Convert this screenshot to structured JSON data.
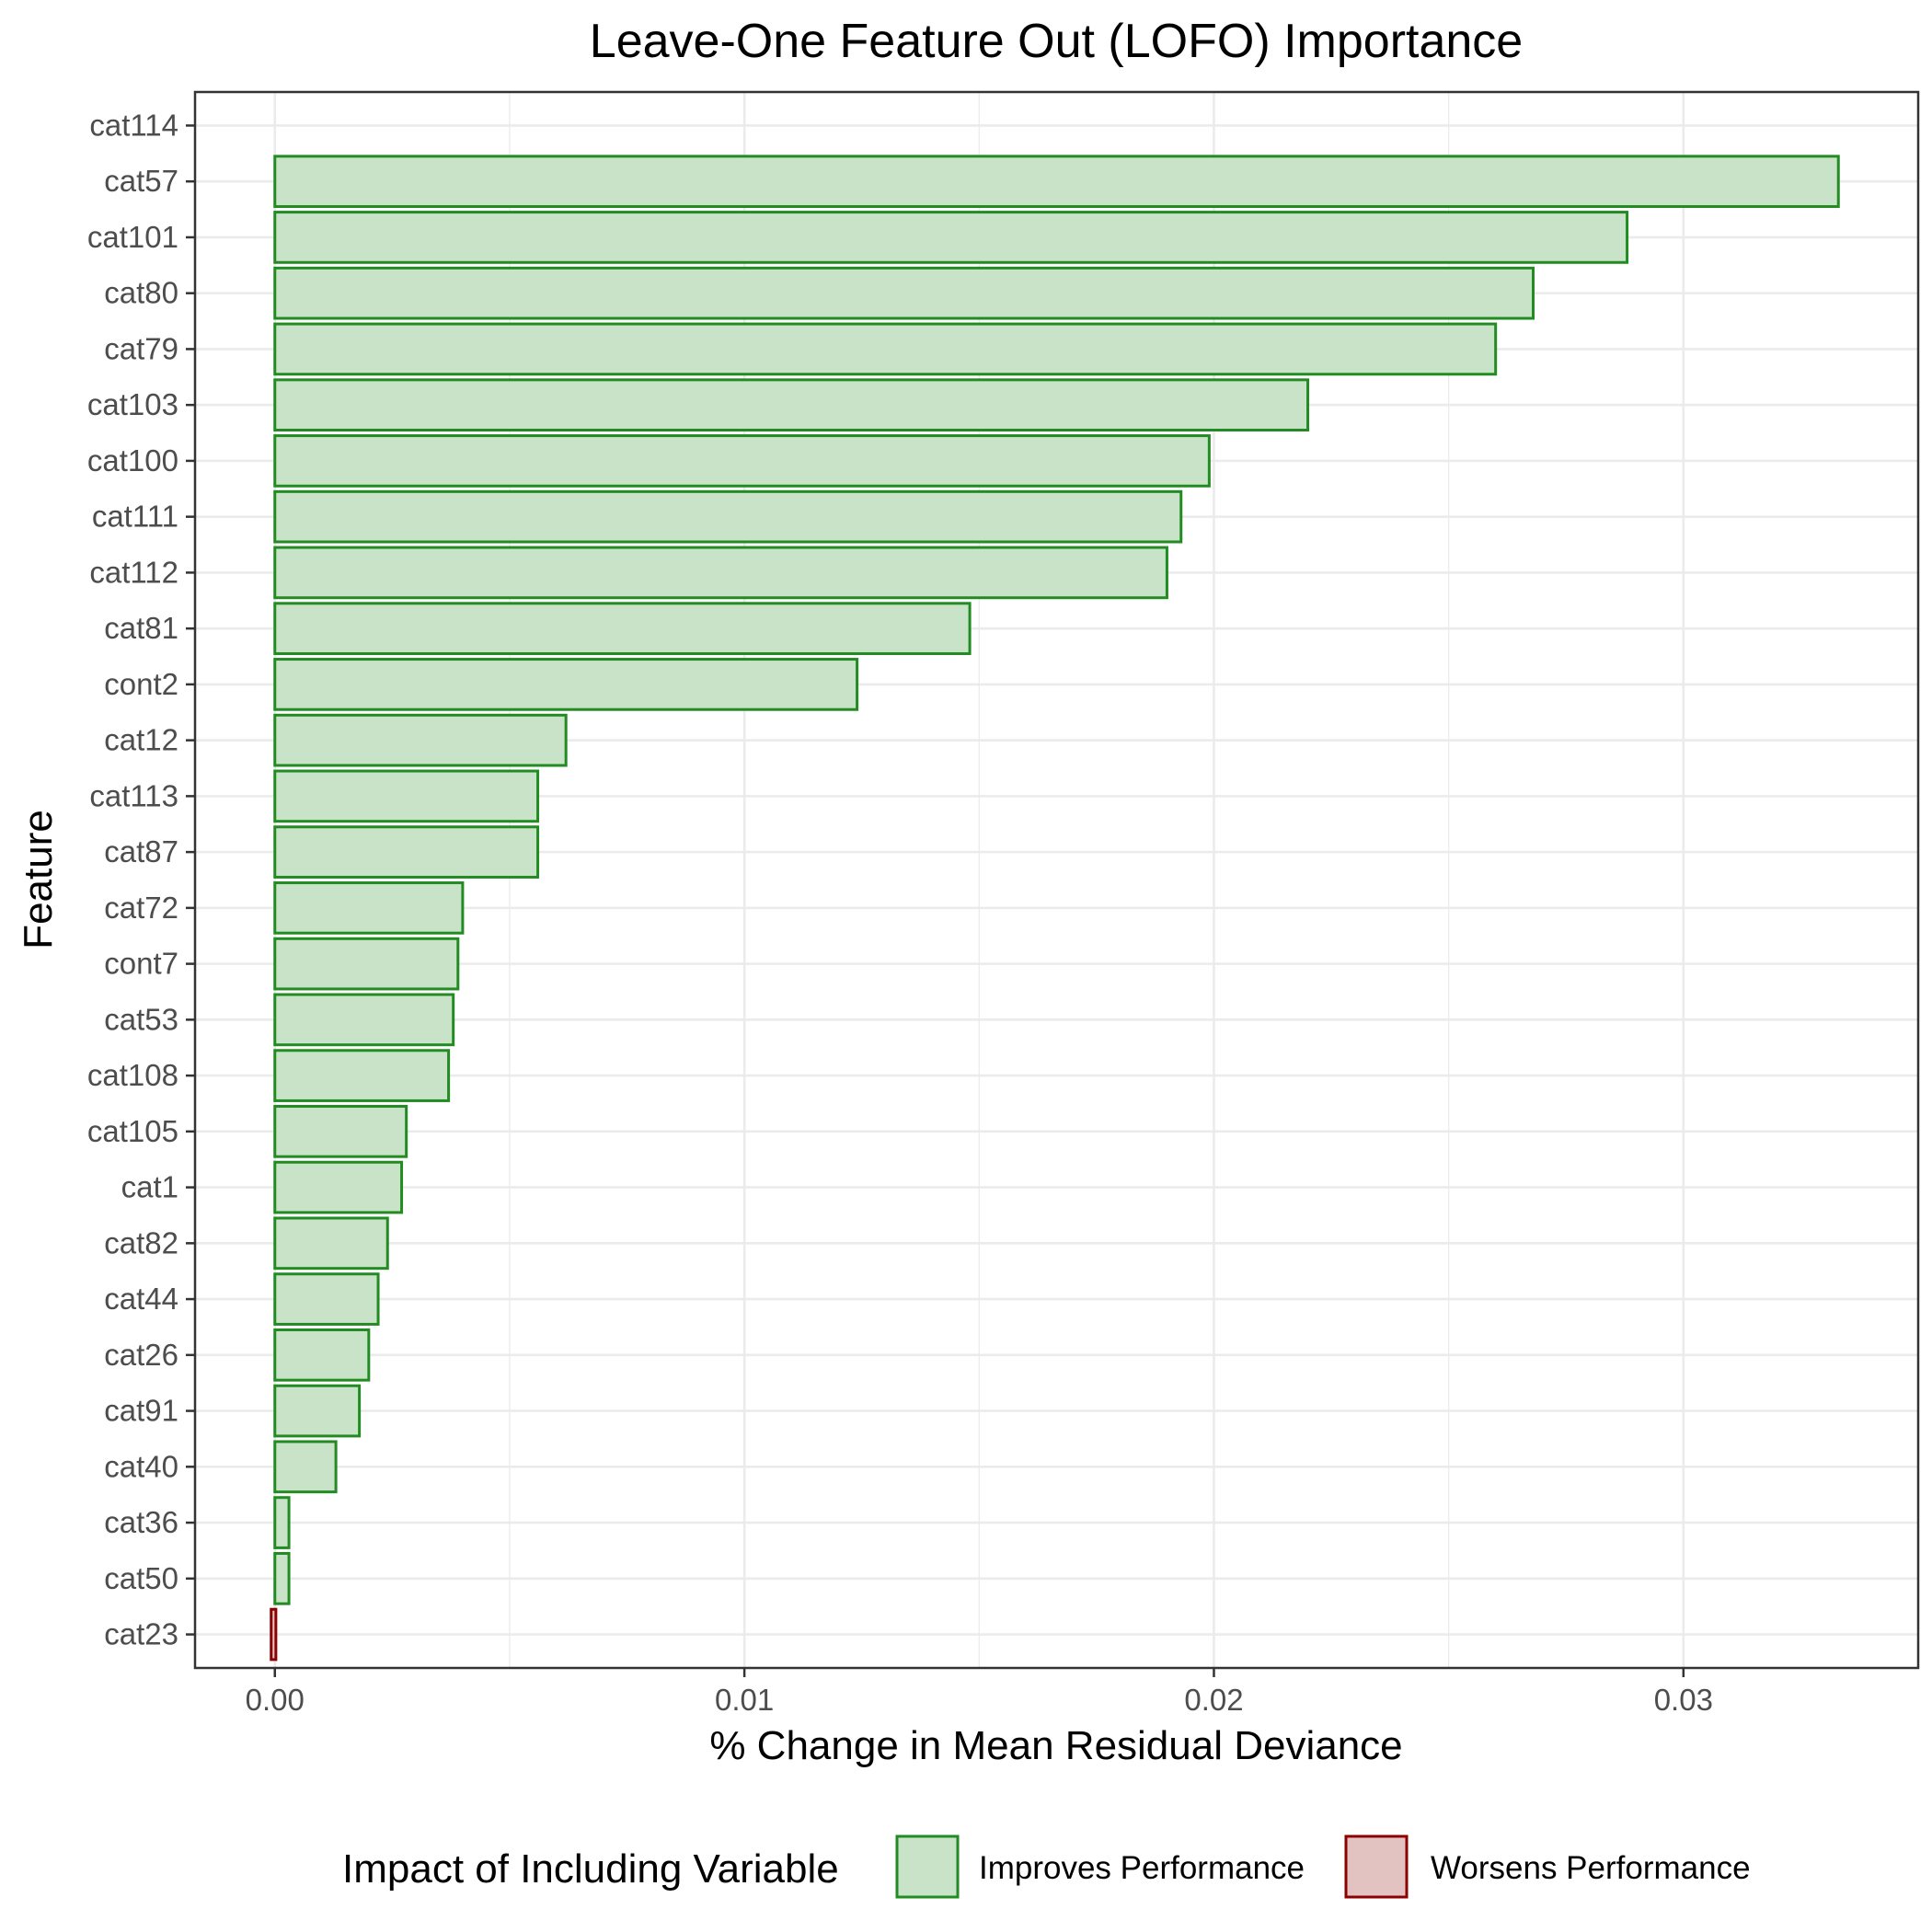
{
  "chart_data": {
    "type": "bar",
    "orientation": "horizontal",
    "title": "Leave-One Feature Out (LOFO) Importance",
    "xlabel": "% Change in Mean Residual Deviance",
    "ylabel": "Feature",
    "xlim": [
      -0.0017,
      0.035
    ],
    "xticks": [
      0.0,
      0.01,
      0.02,
      0.03
    ],
    "xtick_labels": [
      "0.00",
      "0.01",
      "0.02",
      "0.03"
    ],
    "grid": true,
    "categories": [
      "cat114",
      "cat57",
      "cat101",
      "cat80",
      "cat79",
      "cat103",
      "cat100",
      "cat111",
      "cat112",
      "cat81",
      "cont2",
      "cat12",
      "cat113",
      "cat87",
      "cat72",
      "cont7",
      "cat53",
      "cat108",
      "cat105",
      "cat1",
      "cat82",
      "cat44",
      "cat26",
      "cat91",
      "cat40",
      "cat36",
      "cat50",
      "cat23"
    ],
    "values": [
      0,
      0.0333,
      0.0288,
      0.0268,
      0.026,
      0.022,
      0.0199,
      0.0193,
      0.019,
      0.0148,
      0.0124,
      0.0062,
      0.0056,
      0.0056,
      0.004,
      0.0039,
      0.0038,
      0.0037,
      0.0028,
      0.0027,
      0.0024,
      0.0022,
      0.002,
      0.0018,
      0.0013,
      0.0003,
      0.0003,
      -0.0001
    ],
    "impact": [
      "none",
      "improves",
      "improves",
      "improves",
      "improves",
      "improves",
      "improves",
      "improves",
      "improves",
      "improves",
      "improves",
      "improves",
      "improves",
      "improves",
      "improves",
      "improves",
      "improves",
      "improves",
      "improves",
      "improves",
      "improves",
      "improves",
      "improves",
      "improves",
      "improves",
      "improves",
      "improves",
      "worsens"
    ],
    "legend": {
      "title": "Impact of Including Variable",
      "placement": "bottom",
      "entries": [
        {
          "key": "improves",
          "label": "Improves Performance"
        },
        {
          "key": "worsens",
          "label": "Worsens Performance"
        }
      ]
    },
    "colors": {
      "improves_fill": "#c8e3c8",
      "improves_stroke": "#228b22",
      "worsens_fill": "#e3c2c2",
      "worsens_stroke": "#8b0000",
      "grid": "#ebebeb",
      "panel_border": "#333333"
    }
  }
}
